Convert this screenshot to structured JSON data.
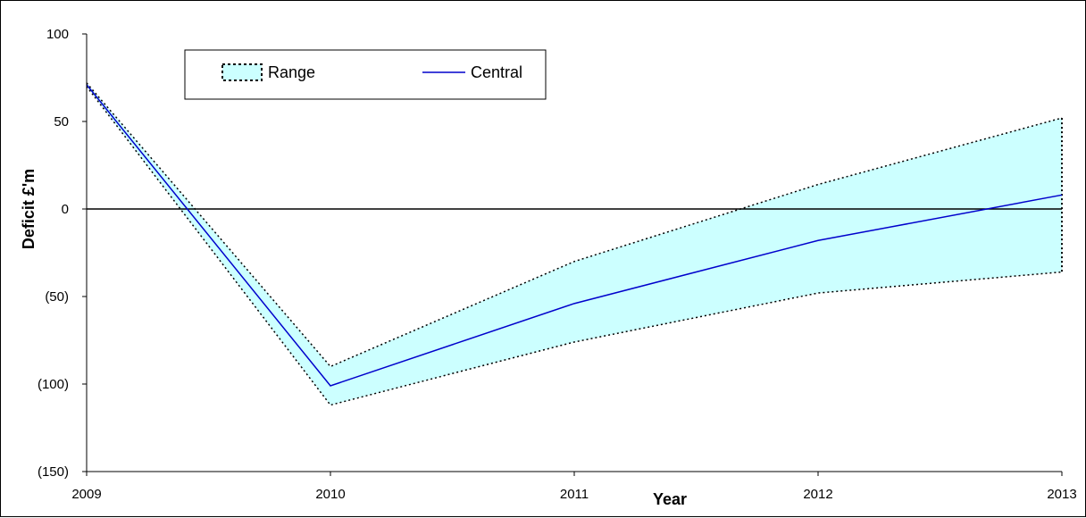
{
  "chart_data": {
    "type": "area",
    "title": "",
    "xlabel": "Year",
    "ylabel": "Deficit £'m",
    "x": [
      2009,
      2010,
      2011,
      2012,
      2013
    ],
    "xlim": [
      2009,
      2013
    ],
    "ylim": [
      -150,
      100
    ],
    "y_ticks": [
      100,
      50,
      0,
      -50,
      -100,
      -150
    ],
    "y_tick_labels": [
      "100",
      "50",
      "0",
      "(50)",
      "(100)",
      "(150)"
    ],
    "x_tick_labels": [
      "2009",
      "2010",
      "2011",
      "2012",
      "2013"
    ],
    "grid": false,
    "legend_position": "top-left",
    "series": [
      {
        "name": "Range",
        "kind": "band",
        "upper": [
          72,
          -90,
          -30,
          14,
          52
        ],
        "lower": [
          70,
          -112,
          -76,
          -48,
          -36
        ],
        "color": "#ccffff"
      },
      {
        "name": "Central",
        "kind": "line",
        "values": [
          71,
          -101,
          -54,
          -18,
          8
        ],
        "color": "#0000cc"
      }
    ]
  }
}
